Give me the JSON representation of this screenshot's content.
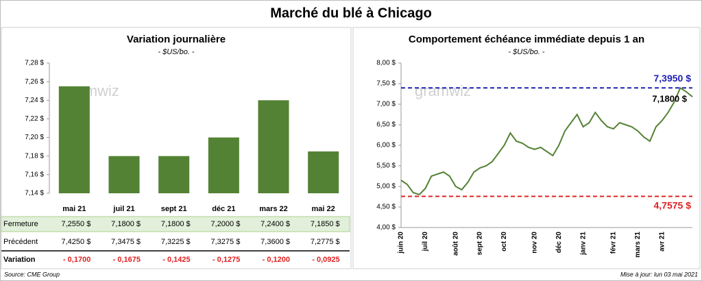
{
  "title": "Marché du blé à Chicago",
  "chart_data": [
    {
      "type": "bar",
      "title": "Variation journalière",
      "subtitle": "- $US/bo. -",
      "categories": [
        "mai 21",
        "juil 21",
        "sept 21",
        "déc 21",
        "mars 22",
        "mai 22"
      ],
      "values": [
        7.255,
        7.18,
        7.18,
        7.2,
        7.24,
        7.185
      ],
      "color": "#548235",
      "ylim": [
        7.14,
        7.28
      ],
      "yticks": [
        {
          "value": 7.14,
          "label": "7,14 $"
        },
        {
          "value": 7.16,
          "label": "7,16 $"
        },
        {
          "value": 7.18,
          "label": "7,18 $"
        },
        {
          "value": 7.2,
          "label": "7,20 $"
        },
        {
          "value": 7.22,
          "label": "7,22 $"
        },
        {
          "value": 7.24,
          "label": "7,24 $"
        },
        {
          "value": 7.26,
          "label": "7,26 $"
        },
        {
          "value": 7.28,
          "label": "7,28 $"
        }
      ],
      "grid": false,
      "watermark": "gramwiz"
    },
    {
      "type": "line",
      "title": "Comportement  échéance immédiate depuis 1 an",
      "subtitle": "- $US/bo. -",
      "categories": [
        "juin 20",
        null,
        null,
        null,
        "juil 20",
        null,
        null,
        null,
        null,
        "août 20",
        null,
        null,
        null,
        "sept 20",
        null,
        null,
        null,
        "oct 20",
        null,
        null,
        null,
        null,
        "nov 20",
        null,
        null,
        null,
        "déc 20",
        null,
        null,
        null,
        "janv 21",
        null,
        null,
        null,
        null,
        "févr 21",
        null,
        null,
        null,
        "mars 21",
        null,
        null,
        null,
        "avr 21",
        null,
        null,
        null,
        null,
        null
      ],
      "series": [
        {
          "name": "Échéance immédiate",
          "color": "#548235",
          "values": [
            5.15,
            5.05,
            4.85,
            4.8,
            4.95,
            5.25,
            5.3,
            5.35,
            5.25,
            5.0,
            4.92,
            5.1,
            5.35,
            5.45,
            5.5,
            5.6,
            5.8,
            6.0,
            6.3,
            6.1,
            6.05,
            5.95,
            5.9,
            5.95,
            5.85,
            5.75,
            6.0,
            6.35,
            6.55,
            6.75,
            6.45,
            6.55,
            6.8,
            6.6,
            6.45,
            6.4,
            6.55,
            6.5,
            6.45,
            6.35,
            6.2,
            6.1,
            6.45,
            6.6,
            6.8,
            7.05,
            7.395,
            7.3,
            7.18
          ]
        }
      ],
      "ylim": [
        4,
        8
      ],
      "yticks": [
        {
          "value": 4,
          "label": "4,00 $"
        },
        {
          "value": 4.5,
          "label": "4,50 $"
        },
        {
          "value": 5,
          "label": "5,00 $"
        },
        {
          "value": 5.5,
          "label": "5,50 $"
        },
        {
          "value": 6,
          "label": "6,00 $"
        },
        {
          "value": 6.5,
          "label": "6,50 $"
        },
        {
          "value": 7,
          "label": "7,00 $"
        },
        {
          "value": 7.5,
          "label": "7,50 $"
        },
        {
          "value": 8,
          "label": "8,00 $"
        }
      ],
      "grid": false,
      "watermark": "gramwiz",
      "reference_lines": [
        {
          "value": 7.395,
          "label": "7,3950 $",
          "color": "#1f1fb4"
        },
        {
          "value": 4.7575,
          "label": "4,7575 $",
          "color": "#e02020"
        }
      ],
      "annotations": [
        {
          "value": 7.18,
          "label": "7,1800 $"
        }
      ]
    }
  ],
  "table": {
    "rows": [
      {
        "label": "Fermeture",
        "cells": [
          "7,2550 $",
          "7,1800 $",
          "7,1800 $",
          "7,2000 $",
          "7,2400 $",
          "7,1850 $"
        ]
      },
      {
        "label": "Précédent",
        "cells": [
          "7,4250 $",
          "7,3475 $",
          "7,3225 $",
          "7,3275 $",
          "7,3600 $",
          "7,2775 $"
        ]
      },
      {
        "label": "Variation",
        "cells": [
          "- 0,1700",
          "- 0,1675",
          "- 0,1425",
          "- 0,1275",
          "- 0,1200",
          "- 0,0925"
        ]
      }
    ]
  },
  "footer": {
    "source": "Source: CME Group",
    "updated": "Mise à jour: lun 03 mai 2021"
  }
}
